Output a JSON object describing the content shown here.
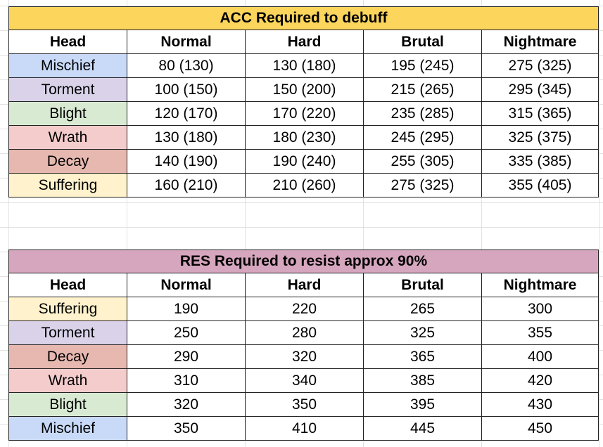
{
  "colors": {
    "acc_title_bg": "#fbd55c",
    "res_title_bg": "#d5a6bd",
    "heads": {
      "Mischief": "#c9daf8",
      "Torment": "#d9d2e9",
      "Blight": "#d9ead3",
      "Wrath": "#f4cccc",
      "Decay": "#e6b8af",
      "Suffering": "#fff2cc"
    }
  },
  "acc_table": {
    "title": "ACC Required to debuff",
    "headers": [
      "Head",
      "Normal",
      "Hard",
      "Brutal",
      "Nightmare"
    ],
    "rows": [
      [
        "Mischief",
        "80 (130)",
        "130 (180)",
        "195 (245)",
        "275 (325)"
      ],
      [
        "Torment",
        "100 (150)",
        "150 (200)",
        "215 (265)",
        "295 (345)"
      ],
      [
        "Blight",
        "120 (170)",
        "170 (220)",
        "235 (285)",
        "315 (365)"
      ],
      [
        "Wrath",
        "130 (180)",
        "180 (230)",
        "245 (295)",
        "325 (375)"
      ],
      [
        "Decay",
        "140 (190)",
        "190 (240)",
        "255 (305)",
        "335 (385)"
      ],
      [
        "Suffering",
        "160 (210)",
        "210 (260)",
        "275 (325)",
        "355 (405)"
      ]
    ]
  },
  "res_table": {
    "title": "RES Required to resist approx 90%",
    "headers": [
      "Head",
      "Normal",
      "Hard",
      "Brutal",
      "Nightmare"
    ],
    "rows": [
      [
        "Suffering",
        "190",
        "220",
        "265",
        "300"
      ],
      [
        "Torment",
        "250",
        "280",
        "325",
        "355"
      ],
      [
        "Decay",
        "290",
        "320",
        "365",
        "400"
      ],
      [
        "Wrath",
        "310",
        "340",
        "385",
        "420"
      ],
      [
        "Blight",
        "320",
        "350",
        "395",
        "430"
      ],
      [
        "Mischief",
        "350",
        "410",
        "445",
        "450"
      ]
    ]
  }
}
